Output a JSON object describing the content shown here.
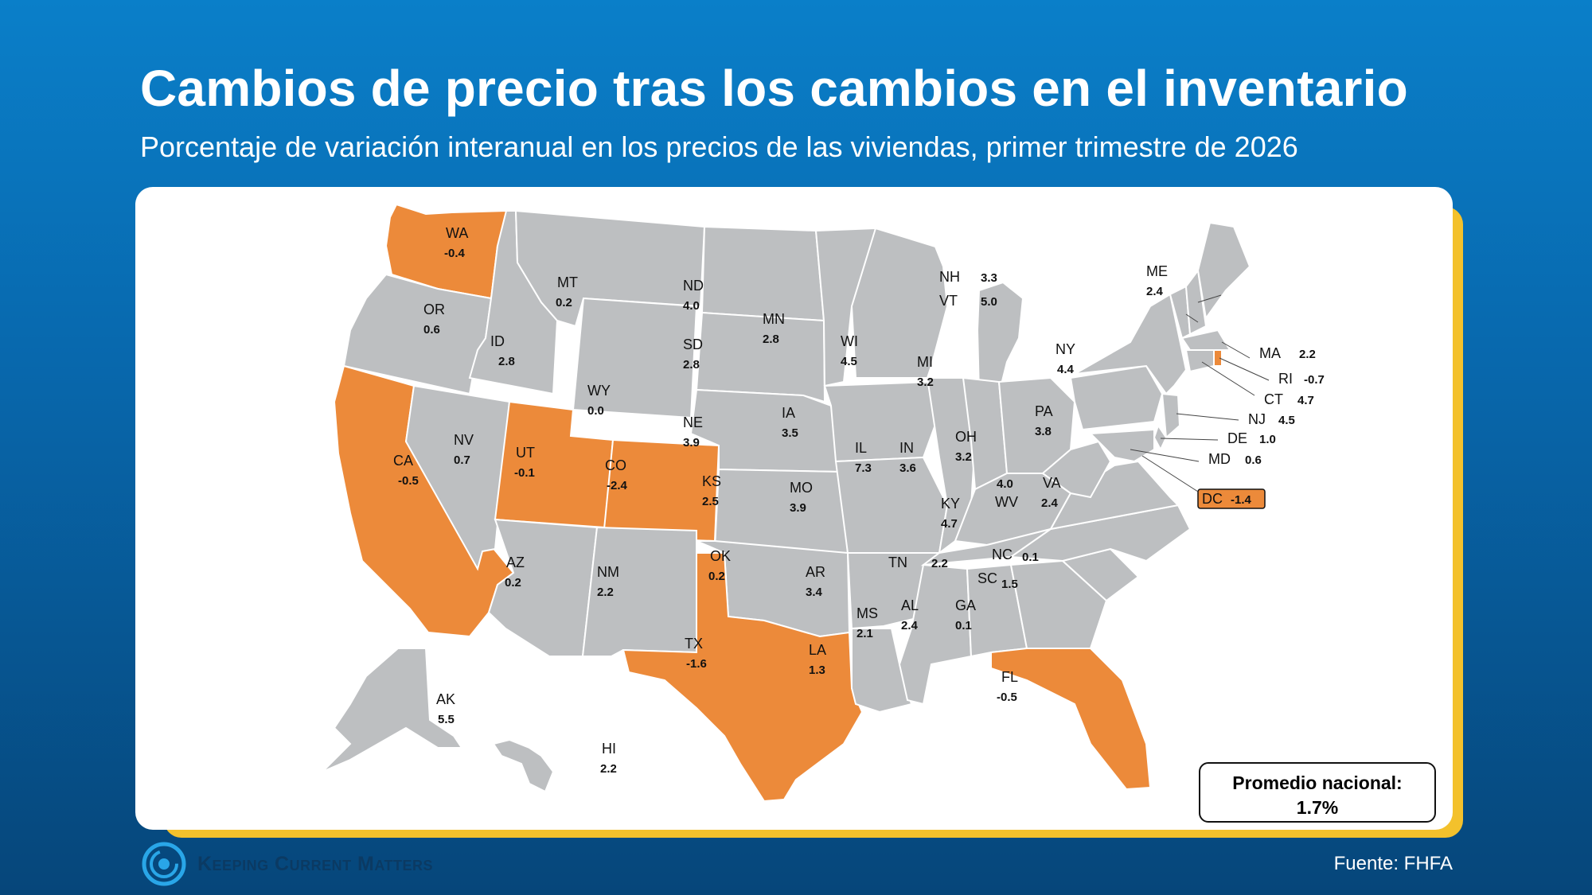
{
  "header": {
    "title": "Cambios de precio tras los cambios en el inventario",
    "subtitle": "Porcentaje de variación interanual en los precios de las viviendas, primer trimestre de 2026"
  },
  "legend": {
    "average_label": "Promedio nacional:",
    "average_value": "1.7%"
  },
  "footer": {
    "logo_text": "Keeping Current Matters",
    "source": "Fuente: FHFA"
  },
  "colors": {
    "negative": "#ec8a3a",
    "positive": "#bdbfc1",
    "background_top": "#0a7fc9",
    "background_bottom": "#06467a",
    "card_accent": "#f3c12c"
  },
  "states": [
    {
      "abbr": "WA",
      "value": "-0.4"
    },
    {
      "abbr": "OR",
      "value": "0.6"
    },
    {
      "abbr": "CA",
      "value": "-0.5"
    },
    {
      "abbr": "NV",
      "value": "0.7"
    },
    {
      "abbr": "ID",
      "value": "2.8"
    },
    {
      "abbr": "MT",
      "value": "0.2"
    },
    {
      "abbr": "WY",
      "value": "0.0"
    },
    {
      "abbr": "UT",
      "value": "-0.1"
    },
    {
      "abbr": "CO",
      "value": "-2.4"
    },
    {
      "abbr": "AZ",
      "value": "0.2"
    },
    {
      "abbr": "NM",
      "value": "2.2"
    },
    {
      "abbr": "ND",
      "value": "4.0"
    },
    {
      "abbr": "SD",
      "value": "2.8"
    },
    {
      "abbr": "NE",
      "value": "3.9"
    },
    {
      "abbr": "KS",
      "value": "2.5"
    },
    {
      "abbr": "OK",
      "value": "0.2"
    },
    {
      "abbr": "TX",
      "value": "-1.6"
    },
    {
      "abbr": "MN",
      "value": "2.8"
    },
    {
      "abbr": "IA",
      "value": "3.5"
    },
    {
      "abbr": "MO",
      "value": "3.9"
    },
    {
      "abbr": "AR",
      "value": "3.4"
    },
    {
      "abbr": "LA",
      "value": "1.3"
    },
    {
      "abbr": "WI",
      "value": "4.5"
    },
    {
      "abbr": "IL",
      "value": "7.3"
    },
    {
      "abbr": "MI",
      "value": "3.2"
    },
    {
      "abbr": "IN",
      "value": "3.6"
    },
    {
      "abbr": "OH",
      "value": "3.2"
    },
    {
      "abbr": "KY",
      "value": "4.7"
    },
    {
      "abbr": "TN",
      "value": "2.2"
    },
    {
      "abbr": "MS",
      "value": "2.1"
    },
    {
      "abbr": "AL",
      "value": "2.4"
    },
    {
      "abbr": "GA",
      "value": "0.1"
    },
    {
      "abbr": "FL",
      "value": "-0.5"
    },
    {
      "abbr": "SC",
      "value": "1.5"
    },
    {
      "abbr": "NC",
      "value": "0.1"
    },
    {
      "abbr": "VA",
      "value": "2.4"
    },
    {
      "abbr": "WV",
      "value": "4.0"
    },
    {
      "abbr": "PA",
      "value": "3.8"
    },
    {
      "abbr": "NY",
      "value": "4.4"
    },
    {
      "abbr": "ME",
      "value": "2.4"
    },
    {
      "abbr": "NH",
      "value": "3.3"
    },
    {
      "abbr": "VT",
      "value": "5.0"
    },
    {
      "abbr": "MA",
      "value": "2.2"
    },
    {
      "abbr": "RI",
      "value": "-0.7"
    },
    {
      "abbr": "CT",
      "value": "4.7"
    },
    {
      "abbr": "NJ",
      "value": "4.5"
    },
    {
      "abbr": "DE",
      "value": "1.0"
    },
    {
      "abbr": "MD",
      "value": "0.6"
    },
    {
      "abbr": "DC",
      "value": "-1.4"
    },
    {
      "abbr": "AK",
      "value": "5.5"
    },
    {
      "abbr": "HI",
      "value": "2.2"
    }
  ]
}
